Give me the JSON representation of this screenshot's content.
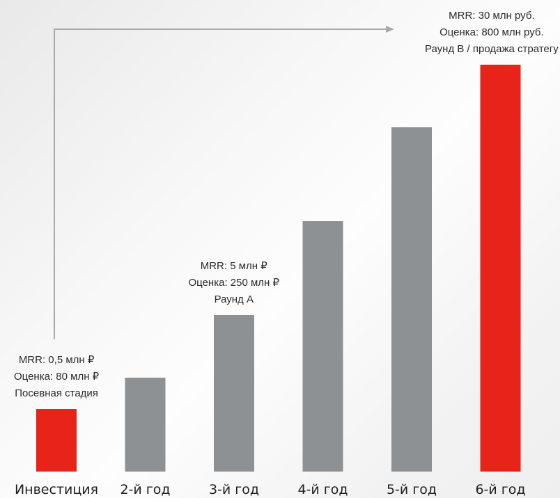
{
  "chart_data": {
    "type": "bar",
    "categories": [
      "Инвестиция",
      "2-й год",
      "3-й год",
      "4-й год",
      "5-й год",
      "6-й год"
    ],
    "values": [
      90,
      135,
      225,
      360,
      495,
      585
    ],
    "highlighted": [
      true,
      false,
      false,
      false,
      false,
      true
    ],
    "colors": {
      "highlight": "#e8231a",
      "normal": "#8e9194",
      "arrow": "#a9a9a9"
    },
    "ylim": [
      0,
      620
    ],
    "grid": false,
    "title": "",
    "xlabel": "",
    "ylabel": "",
    "annotations": [
      {
        "category": "Инвестиция",
        "lines": [
          "MRR: 0,5 млн ₽",
          "Оценка: 80 млн ₽",
          "Посевная стадия"
        ]
      },
      {
        "category": "3-й год",
        "lines": [
          "MRR: 5 млн ₽",
          "Оценка: 250 млн ₽",
          "Раунд А"
        ]
      },
      {
        "category": "6-й год",
        "lines": [
          "MRR: 30 млн руб.",
          "Оценка: 800 млн руб.",
          "Раунд B / продажа стратегу"
        ]
      }
    ]
  }
}
